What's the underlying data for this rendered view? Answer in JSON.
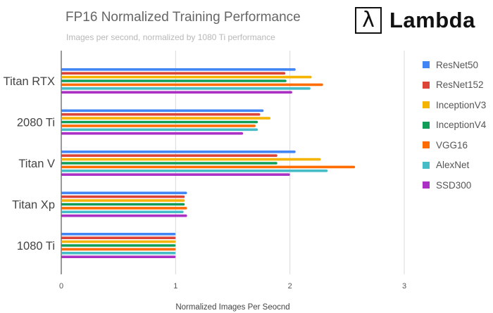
{
  "logo": {
    "symbol": "λ",
    "text": "Lambda"
  },
  "chart_data": {
    "type": "bar",
    "orientation": "horizontal",
    "title": "FP16 Normalized Training Performance",
    "subtitle": "Images per second, normalized by 1080 Ti performance",
    "xlabel": "Normalized Images Per Seocnd",
    "ylabel": "",
    "xlim": [
      0,
      3
    ],
    "xticks": [
      "0",
      "1",
      "2",
      "3"
    ],
    "grid": true,
    "legend_position": "right",
    "categories": [
      "Titan RTX",
      "2080 Ti",
      "Titan V",
      "Titan Xp",
      "1080 Ti"
    ],
    "series": [
      {
        "name": "ResNet50",
        "color": "#4285f4",
        "values": [
          2.05,
          1.77,
          2.05,
          1.1,
          1.0
        ]
      },
      {
        "name": "ResNet152",
        "color": "#db4437",
        "values": [
          1.96,
          1.74,
          1.89,
          1.08,
          1.0
        ]
      },
      {
        "name": "InceptionV3",
        "color": "#f4b400",
        "values": [
          2.19,
          1.83,
          2.27,
          1.08,
          1.0
        ]
      },
      {
        "name": "InceptionV4",
        "color": "#0f9d58",
        "values": [
          1.97,
          1.72,
          1.89,
          1.08,
          1.0
        ]
      },
      {
        "name": "VGG16",
        "color": "#ff6d01",
        "values": [
          2.29,
          1.7,
          2.57,
          1.1,
          1.0
        ]
      },
      {
        "name": "AlexNet",
        "color": "#46bdc6",
        "values": [
          2.18,
          1.72,
          2.33,
          1.07,
          1.0
        ]
      },
      {
        "name": "SSD300",
        "color": "#ab30c4",
        "values": [
          2.02,
          1.59,
          2.0,
          1.1,
          1.0
        ]
      }
    ]
  }
}
